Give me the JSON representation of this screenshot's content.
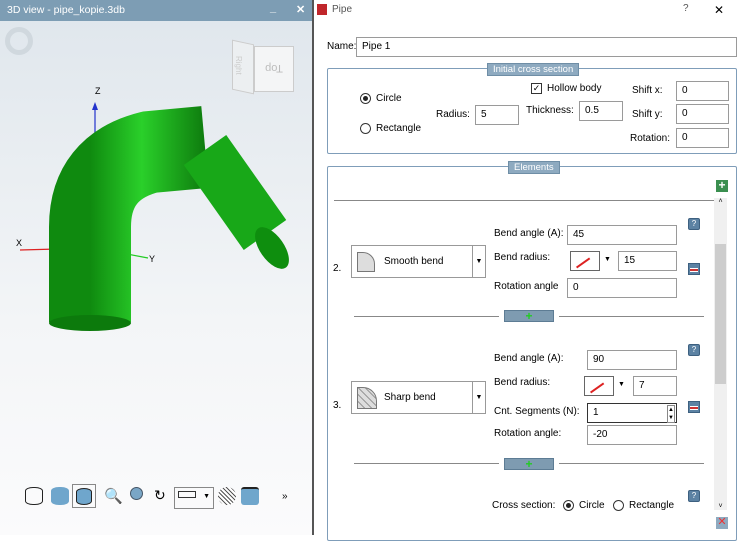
{
  "left_panel": {
    "title": "3D view - pipe_kopie.3db",
    "minimize": "_",
    "close": "✕",
    "viewcube": {
      "front": "Top",
      "side": "Right"
    },
    "axes": {
      "x": "X",
      "y": "Y",
      "z": "Z"
    },
    "pipe_color": "#1db31d",
    "toolbar": [
      "wireframe-icon",
      "shaded-icon",
      "shaded-edges-icon",
      "zoom-fit-icon",
      "zoom-window-icon",
      "rotate-icon",
      "measure-dropdown-icon",
      "mesh-icon",
      "dimension-icon"
    ],
    "more": "»"
  },
  "dialog": {
    "title": "Pipe",
    "help": "?",
    "close": "✕",
    "name_label": "Name:",
    "name_value": "Pipe 1",
    "cross_section": {
      "title": "Initial cross section",
      "circle": "Circle",
      "rectangle": "Rectangle",
      "selected": "Circle",
      "radius_label": "Radius:",
      "radius": "5",
      "hollow_label": "Hollow body",
      "hollow": true,
      "thickness_label": "Thickness:",
      "thickness": "0.5",
      "shift_x_label": "Shift x:",
      "shift_x": "0",
      "shift_y_label": "Shift y:",
      "shift_y": "0",
      "rotation_label": "Rotation:",
      "rotation": "0"
    },
    "elements": {
      "title": "Elements",
      "items": [
        {
          "index": "2.",
          "type": "Smooth bend",
          "bend_angle_label": "Bend angle (A):",
          "bend_angle": "45",
          "bend_radius_label": "Bend radius:",
          "bend_radius": "15",
          "rotation_label": "Rotation angle",
          "rotation": "0"
        },
        {
          "index": "3.",
          "type": "Sharp bend",
          "bend_angle_label": "Bend angle (A):",
          "bend_angle": "90",
          "bend_radius_label": "Bend radius:",
          "bend_radius": "7",
          "segments_label": "Cnt. Segments (N):",
          "segments": "1",
          "rotation_label": "Rotation angle:",
          "rotation": "-20"
        }
      ],
      "cross_section_label": "Cross section:",
      "cs_circle": "Circle",
      "cs_rectangle": "Rectangle",
      "cs_selected": "Circle"
    }
  }
}
